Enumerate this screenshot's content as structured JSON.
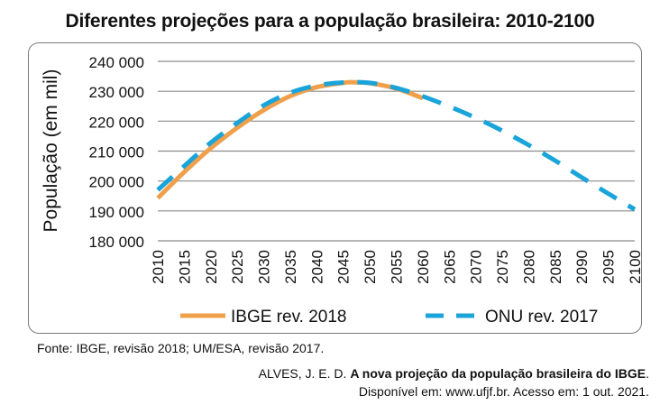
{
  "chart_data": {
    "type": "line",
    "title": "Diferentes projeções para a população brasileira: 2010-2100",
    "ylabel": "População (em mil)",
    "xlabel": "",
    "ylim": [
      180000,
      240000
    ],
    "yticks": [
      "240 000",
      "230 000",
      "220 000",
      "210 000",
      "200 000",
      "190 000",
      "180 000"
    ],
    "ytick_values": [
      240000,
      230000,
      220000,
      210000,
      200000,
      190000,
      180000
    ],
    "xticks": [
      "2010",
      "2015",
      "2020",
      "2025",
      "2030",
      "2035",
      "2040",
      "2045",
      "2050",
      "2055",
      "2060",
      "2065",
      "2070",
      "2075",
      "2080",
      "2085",
      "2090",
      "2095",
      "2100"
    ],
    "grid": true,
    "legend_position": "bottom",
    "series": [
      {
        "name": "IBGE rev. 2018",
        "color": "#f0a04b",
        "style": "solid",
        "x": [
          2010,
          2015,
          2020,
          2025,
          2030,
          2035,
          2040,
          2045,
          2047,
          2050,
          2055,
          2060
        ],
        "y": [
          194300,
          203000,
          211000,
          217800,
          223700,
          228400,
          231400,
          232800,
          233000,
          232700,
          230900,
          227700
        ]
      },
      {
        "name": "ONU rev. 2017",
        "color": "#1aa4d9",
        "style": "dashed",
        "x": [
          2010,
          2015,
          2020,
          2025,
          2030,
          2035,
          2040,
          2045,
          2050,
          2055,
          2060,
          2065,
          2070,
          2075,
          2080,
          2085,
          2090,
          2095,
          2100
        ],
        "y": [
          197000,
          205000,
          212800,
          219400,
          225300,
          229500,
          231900,
          232900,
          232800,
          231100,
          228300,
          224900,
          221100,
          216800,
          212000,
          206800,
          201200,
          195800,
          190500
        ]
      }
    ]
  },
  "source": "Fonte: IBGE, revisão 2018; UM/ESA, revisão 2017.",
  "citation": {
    "author": "ALVES, J. E. D. ",
    "title": "A nova projeção da população brasileira do IBGE",
    "title_suffix": ".",
    "access": "Disponível em: www.ufjf.br. Acesso em: 1 out. 2021."
  }
}
